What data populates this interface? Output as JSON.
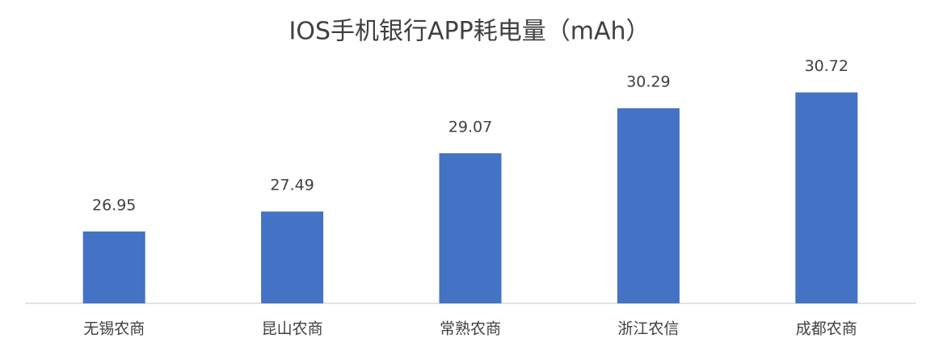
{
  "chart_data": {
    "type": "bar",
    "title": "IOS手机银行APP耗电量（mAh）",
    "categories": [
      "无锡农商",
      "昆山农商",
      "常熟农商",
      "浙江农信",
      "成都农商"
    ],
    "values": [
      26.95,
      27.49,
      29.07,
      30.29,
      30.72
    ],
    "color": "#4472c4",
    "ylim": [
      25,
      32
    ]
  }
}
